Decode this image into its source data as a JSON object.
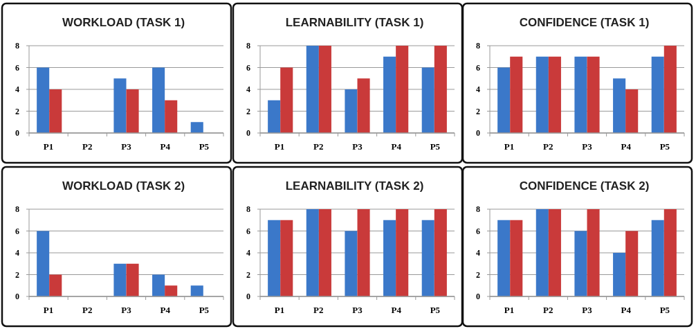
{
  "chart_data": [
    {
      "type": "bar",
      "title": "WORKLOAD (TASK 1)",
      "categories": [
        "P1",
        "P2",
        "P3",
        "P4",
        "P5"
      ],
      "series": [
        {
          "color": "#3b78c9",
          "values": [
            6,
            0,
            5,
            6,
            1
          ]
        },
        {
          "color": "#c93a3a",
          "values": [
            4,
            0,
            4,
            3,
            0
          ]
        }
      ],
      "ylim": [
        0,
        8
      ],
      "yticks": [
        0,
        2,
        4,
        6,
        8
      ],
      "grid": "y"
    },
    {
      "type": "bar",
      "title": "LEARNABILITY (TASK 1)",
      "categories": [
        "P1",
        "P2",
        "P3",
        "P4",
        "P5"
      ],
      "series": [
        {
          "color": "#3b78c9",
          "values": [
            3,
            8,
            4,
            7,
            6
          ]
        },
        {
          "color": "#c93a3a",
          "values": [
            6,
            8,
            5,
            8,
            8
          ]
        }
      ],
      "ylim": [
        0,
        8
      ],
      "yticks": [
        0,
        2,
        4,
        6,
        8
      ],
      "grid": "y"
    },
    {
      "type": "bar",
      "title": "CONFIDENCE (TASK 1)",
      "categories": [
        "P1",
        "P2",
        "P3",
        "P4",
        "P5"
      ],
      "series": [
        {
          "color": "#3b78c9",
          "values": [
            6,
            7,
            7,
            5,
            7
          ]
        },
        {
          "color": "#c93a3a",
          "values": [
            7,
            7,
            7,
            4,
            8
          ]
        }
      ],
      "ylim": [
        0,
        8
      ],
      "yticks": [
        0,
        2,
        4,
        6,
        8
      ],
      "grid": "y"
    },
    {
      "type": "bar",
      "title": "WORKLOAD (TASK 2)",
      "categories": [
        "P1",
        "P2",
        "P3",
        "P4",
        "P5"
      ],
      "series": [
        {
          "color": "#3b78c9",
          "values": [
            6,
            0,
            3,
            2,
            1
          ]
        },
        {
          "color": "#c93a3a",
          "values": [
            2,
            0,
            3,
            1,
            0
          ]
        }
      ],
      "ylim": [
        0,
        8
      ],
      "yticks": [
        0,
        2,
        4,
        6,
        8
      ],
      "grid": "y"
    },
    {
      "type": "bar",
      "title": "LEARNABILITY (TASK 2)",
      "categories": [
        "P1",
        "P2",
        "P3",
        "P4",
        "P5"
      ],
      "series": [
        {
          "color": "#3b78c9",
          "values": [
            7,
            8,
            6,
            7,
            7
          ]
        },
        {
          "color": "#c93a3a",
          "values": [
            7,
            8,
            8,
            8,
            8
          ]
        }
      ],
      "ylim": [
        0,
        8
      ],
      "yticks": [
        0,
        2,
        4,
        6,
        8
      ],
      "grid": "y"
    },
    {
      "type": "bar",
      "title": "CONFIDENCE (TASK 2)",
      "categories": [
        "P1",
        "P2",
        "P3",
        "P4",
        "P5"
      ],
      "series": [
        {
          "color": "#3b78c9",
          "values": [
            7,
            8,
            6,
            4,
            7
          ]
        },
        {
          "color": "#c93a3a",
          "values": [
            7,
            8,
            8,
            6,
            8
          ]
        }
      ],
      "ylim": [
        0,
        8
      ],
      "yticks": [
        0,
        2,
        4,
        6,
        8
      ],
      "grid": "y"
    }
  ]
}
